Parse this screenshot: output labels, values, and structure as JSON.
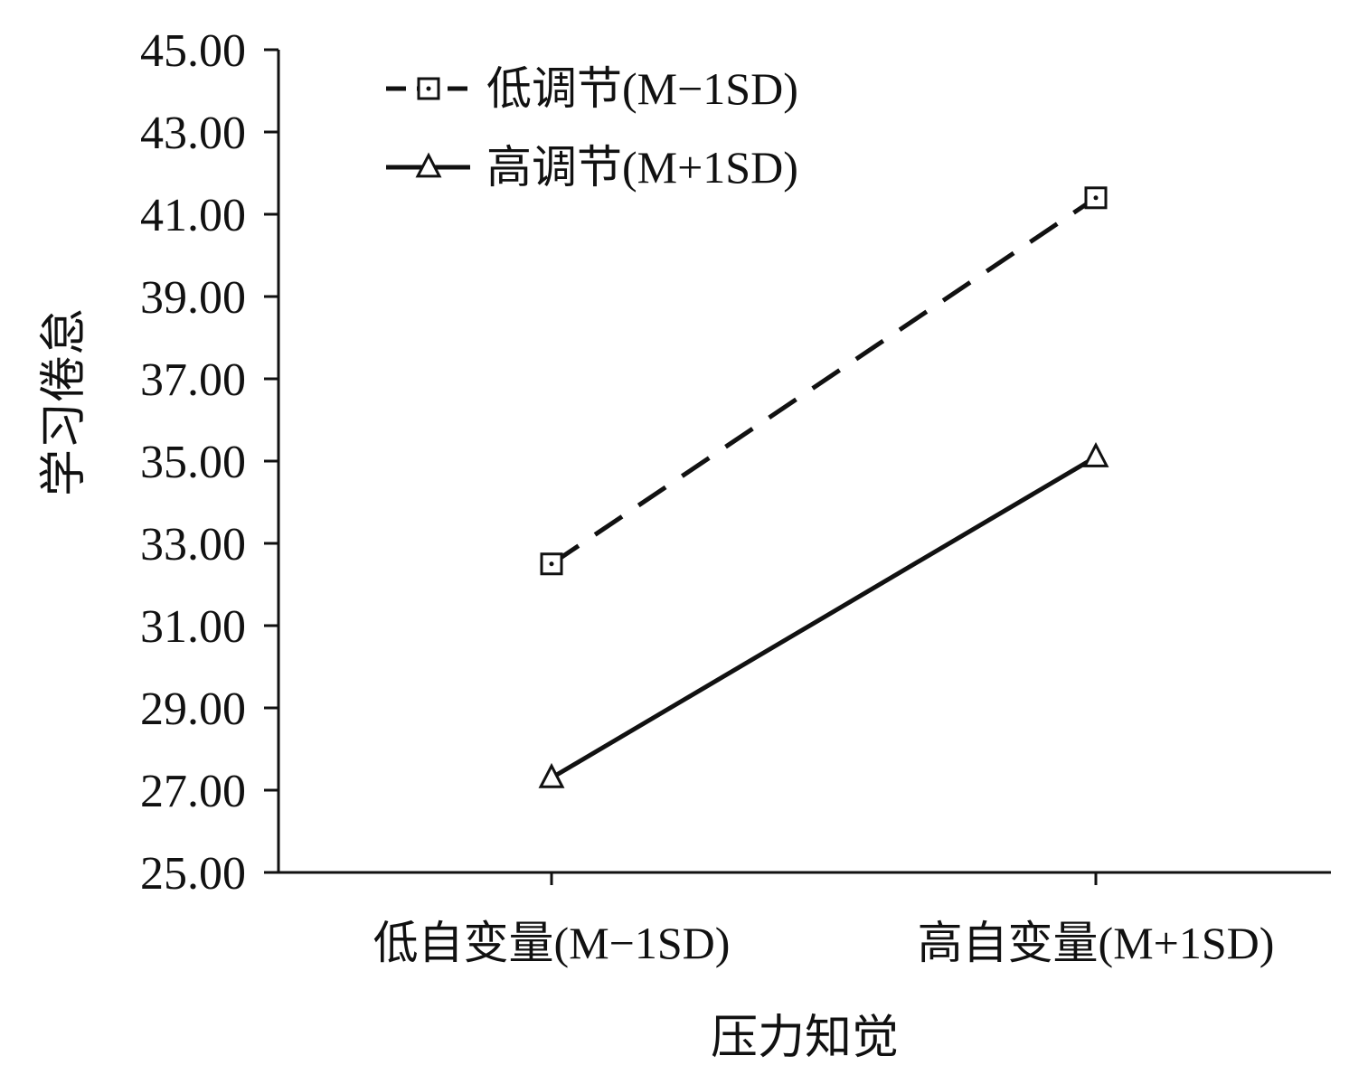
{
  "chart_data": {
    "type": "line",
    "title": "",
    "xlabel": "压力知觉",
    "ylabel": "学习倦怠",
    "categories": [
      "低自变量(M−1SD)",
      "高自变量(M+1SD)"
    ],
    "yticks": [
      "25.00",
      "27.00",
      "29.00",
      "31.00",
      "33.00",
      "35.00",
      "37.00",
      "39.00",
      "41.00",
      "43.00",
      "45.00"
    ],
    "ylim": [
      25,
      45
    ],
    "grid": false,
    "legend_position": "top-left",
    "series": [
      {
        "name": "低调节(M−1SD)",
        "values": [
          32.5,
          41.4
        ],
        "line_style": "dashed",
        "marker": "square"
      },
      {
        "name": "高调节(M+1SD)",
        "values": [
          27.3,
          35.1
        ],
        "line_style": "solid",
        "marker": "triangle"
      }
    ]
  },
  "colors": {
    "line": "#111111",
    "background": "#ffffff"
  }
}
